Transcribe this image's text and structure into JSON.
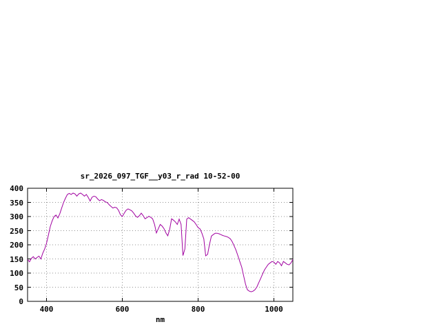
{
  "chart_data": {
    "type": "line",
    "title": "sr_2026_097_TGF__y03_r_rad 10-52-00",
    "xlabel": "nm",
    "ylabel": "",
    "xlim": [
      350,
      1050
    ],
    "ylim": [
      0,
      400
    ],
    "xticks": [
      400,
      600,
      800,
      1000
    ],
    "yticks": [
      0,
      50,
      100,
      150,
      200,
      250,
      300,
      350,
      400
    ],
    "grid": true,
    "legend": "none",
    "line_color": "#a000a0",
    "border_color": "#000000",
    "grid_color": "#909090",
    "series": [
      {
        "x": [
          350,
          355,
          360,
          365,
          370,
          375,
          380,
          385,
          390,
          395,
          400,
          405,
          410,
          415,
          420,
          425,
          430,
          435,
          440,
          445,
          450,
          455,
          460,
          465,
          470,
          475,
          480,
          485,
          490,
          495,
          500,
          505,
          510,
          515,
          520,
          525,
          530,
          535,
          540,
          545,
          550,
          555,
          560,
          565,
          570,
          575,
          580,
          585,
          590,
          595,
          600,
          605,
          610,
          615,
          620,
          625,
          630,
          635,
          640,
          645,
          650,
          655,
          660,
          665,
          670,
          675,
          680,
          685,
          690,
          695,
          700,
          705,
          710,
          715,
          720,
          725,
          730,
          735,
          740,
          745,
          750,
          755,
          760,
          765,
          770,
          775,
          780,
          785,
          790,
          795,
          800,
          805,
          810,
          815,
          820,
          825,
          830,
          835,
          840,
          845,
          850,
          855,
          860,
          865,
          870,
          875,
          880,
          885,
          890,
          895,
          900,
          905,
          910,
          915,
          920,
          925,
          930,
          935,
          940,
          945,
          950,
          955,
          960,
          965,
          970,
          975,
          980,
          985,
          990,
          995,
          1000,
          1005,
          1010,
          1015,
          1020,
          1025,
          1030,
          1035,
          1040,
          1045,
          1050
        ],
        "y": [
          148,
          140,
          152,
          158,
          150,
          155,
          160,
          150,
          170,
          185,
          205,
          235,
          265,
          285,
          300,
          305,
          295,
          310,
          330,
          350,
          365,
          378,
          382,
          378,
          383,
          380,
          372,
          380,
          383,
          378,
          372,
          378,
          368,
          355,
          368,
          372,
          370,
          362,
          356,
          360,
          357,
          352,
          350,
          342,
          336,
          330,
          333,
          331,
          322,
          306,
          300,
          312,
          322,
          327,
          324,
          320,
          312,
          302,
          297,
          303,
          312,
          303,
          292,
          296,
          301,
          297,
          292,
          272,
          242,
          257,
          272,
          266,
          257,
          242,
          232,
          255,
          292,
          287,
          281,
          272,
          291,
          272,
          162,
          185,
          291,
          296,
          291,
          286,
          281,
          271,
          261,
          256,
          241,
          221,
          161,
          166,
          201,
          231,
          236,
          241,
          241,
          239,
          236,
          233,
          231,
          229,
          226,
          221,
          211,
          196,
          181,
          161,
          141,
          121,
          91,
          61,
          41,
          36,
          34,
          36,
          41,
          51,
          66,
          81,
          96,
          111,
          121,
          131,
          136,
          141,
          139,
          131,
          141,
          136,
          126,
          141,
          136,
          131,
          129,
          136,
          148
        ]
      }
    ]
  }
}
